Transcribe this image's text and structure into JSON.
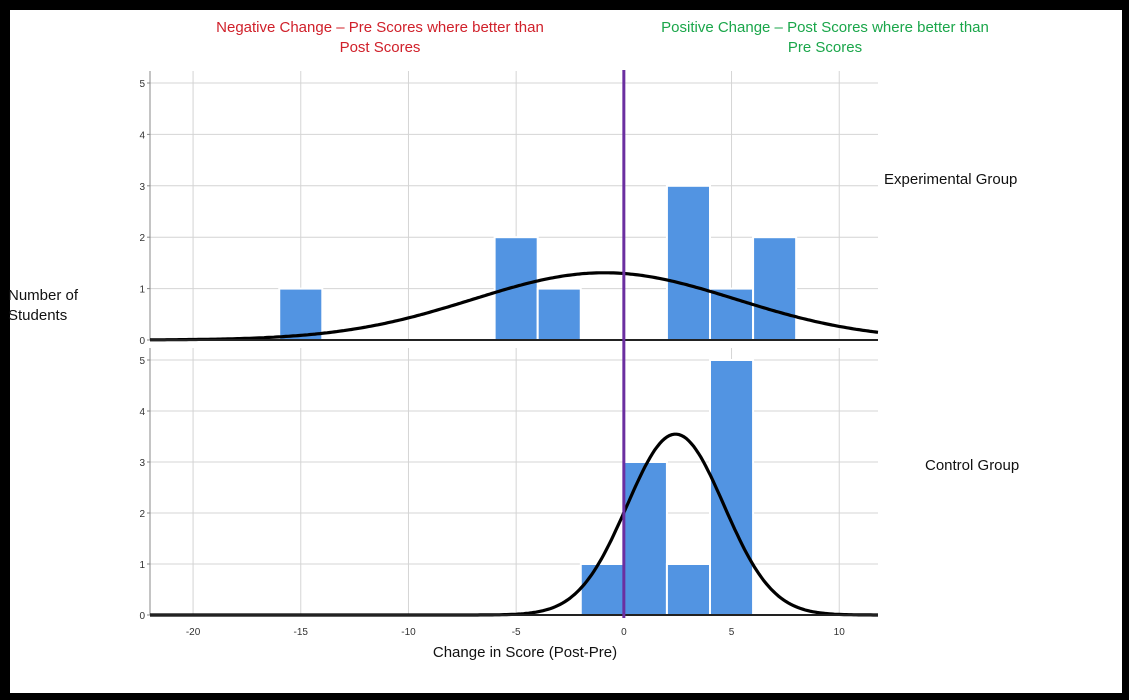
{
  "annotations": {
    "negative": "Negative Change – Pre Scores where better than Post Scores",
    "positive": "Positive Change – Post Scores where better than Pre Scores"
  },
  "y_axis_label": "Number of Students",
  "x_axis_label": "Change in Score (Post-Pre)",
  "colors": {
    "bar": "#5294e2",
    "curve": "#000000",
    "zero_line": "#6b2fa0",
    "grid": "#d4d4d4",
    "negative_text": "#d0202a",
    "positive_text": "#1aa64a"
  },
  "chart_data": [
    {
      "type": "bar",
      "group_label": "Experimental Group",
      "bin_width": 2,
      "bins": [
        {
          "x0": -16,
          "x1": -14,
          "count": 1
        },
        {
          "x0": -6,
          "x1": -4,
          "count": 2
        },
        {
          "x0": -4,
          "x1": -2,
          "count": 1
        },
        {
          "x0": 2,
          "x1": 4,
          "count": 3
        },
        {
          "x0": 4,
          "x1": 6,
          "count": 1
        },
        {
          "x0": 6,
          "x1": 8,
          "count": 2
        }
      ],
      "normal_curve": {
        "mean": -0.9,
        "sd": 6.1,
        "n": 10
      },
      "xlim": [
        -22,
        11.8
      ],
      "ylim": [
        0,
        5
      ],
      "x_ticks": [
        -20,
        -15,
        -10,
        -5,
        0,
        5,
        10
      ],
      "y_ticks": [
        0,
        1,
        2,
        3,
        4,
        5
      ]
    },
    {
      "type": "bar",
      "group_label": "Control Group",
      "bin_width": 2,
      "bins": [
        {
          "x0": -2,
          "x1": 0,
          "count": 1
        },
        {
          "x0": 0,
          "x1": 2,
          "count": 3
        },
        {
          "x0": 2,
          "x1": 4,
          "count": 1
        },
        {
          "x0": 4,
          "x1": 6,
          "count": 5
        }
      ],
      "normal_curve": {
        "mean": 2.4,
        "sd": 2.25,
        "n": 10
      },
      "xlim": [
        -22,
        11.8
      ],
      "ylim": [
        0,
        5
      ],
      "x_ticks": [
        -20,
        -15,
        -10,
        -5,
        0,
        5,
        10
      ],
      "y_ticks": [
        0,
        1,
        2,
        3,
        4,
        5
      ]
    }
  ]
}
